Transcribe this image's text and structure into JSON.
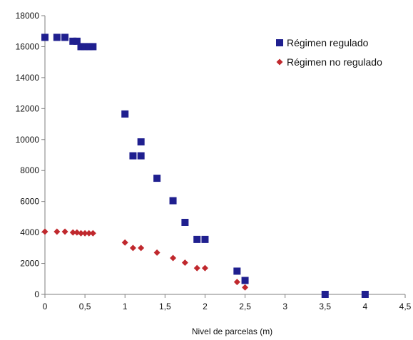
{
  "chart_data": {
    "type": "scatter",
    "title": "",
    "xlabel": "Nivel de parcelas (m)",
    "ylabel": "",
    "xlim": [
      0,
      4.5
    ],
    "ylim": [
      0,
      18000
    ],
    "x_ticks": [
      {
        "value": 0,
        "label": "0"
      },
      {
        "value": 0.5,
        "label": "0,5"
      },
      {
        "value": 1,
        "label": "1"
      },
      {
        "value": 1.5,
        "label": "1,5"
      },
      {
        "value": 2,
        "label": "2"
      },
      {
        "value": 2.5,
        "label": "2,5"
      },
      {
        "value": 3,
        "label": "3"
      },
      {
        "value": 3.5,
        "label": "3,5"
      },
      {
        "value": 4,
        "label": "4"
      },
      {
        "value": 4.5,
        "label": "4,5"
      }
    ],
    "y_ticks": [
      {
        "value": 0,
        "label": "0"
      },
      {
        "value": 2000,
        "label": "2000"
      },
      {
        "value": 4000,
        "label": "4000"
      },
      {
        "value": 6000,
        "label": "6000"
      },
      {
        "value": 8000,
        "label": "8000"
      },
      {
        "value": 10000,
        "label": "10000"
      },
      {
        "value": 12000,
        "label": "12000"
      },
      {
        "value": 14000,
        "label": "14000"
      },
      {
        "value": 16000,
        "label": "16000"
      },
      {
        "value": 18000,
        "label": "18000"
      }
    ],
    "grid": false,
    "legend": "top-right",
    "series": [
      {
        "name": "Régimen regulado",
        "marker": "square",
        "color": "#1f1f8f",
        "points": [
          {
            "x": 0,
            "y": 16600
          },
          {
            "x": 0.15,
            "y": 16600
          },
          {
            "x": 0.25,
            "y": 16600
          },
          {
            "x": 0.35,
            "y": 16350
          },
          {
            "x": 0.4,
            "y": 16350
          },
          {
            "x": 0.45,
            "y": 16000
          },
          {
            "x": 0.5,
            "y": 16000
          },
          {
            "x": 0.55,
            "y": 16000
          },
          {
            "x": 0.6,
            "y": 16000
          },
          {
            "x": 1,
            "y": 11650
          },
          {
            "x": 1.1,
            "y": 8950
          },
          {
            "x": 1.2,
            "y": 9850
          },
          {
            "x": 1.2,
            "y": 8950
          },
          {
            "x": 1.4,
            "y": 7500
          },
          {
            "x": 1.6,
            "y": 6050
          },
          {
            "x": 1.75,
            "y": 4650
          },
          {
            "x": 1.9,
            "y": 3550
          },
          {
            "x": 2,
            "y": 3550
          },
          {
            "x": 2.4,
            "y": 1500
          },
          {
            "x": 2.5,
            "y": 900
          },
          {
            "x": 3.5,
            "y": 0
          },
          {
            "x": 4,
            "y": 0
          }
        ]
      },
      {
        "name": "Régimen no regulado",
        "marker": "diamond",
        "color": "#c0282d",
        "points": [
          {
            "x": 0,
            "y": 4050
          },
          {
            "x": 0.15,
            "y": 4050
          },
          {
            "x": 0.25,
            "y": 4050
          },
          {
            "x": 0.35,
            "y": 4000
          },
          {
            "x": 0.4,
            "y": 4000
          },
          {
            "x": 0.45,
            "y": 3950
          },
          {
            "x": 0.5,
            "y": 3950
          },
          {
            "x": 0.55,
            "y": 3950
          },
          {
            "x": 0.6,
            "y": 3950
          },
          {
            "x": 1,
            "y": 3350
          },
          {
            "x": 1.1,
            "y": 3000
          },
          {
            "x": 1.2,
            "y": 3000
          },
          {
            "x": 1.4,
            "y": 2700
          },
          {
            "x": 1.6,
            "y": 2350
          },
          {
            "x": 1.75,
            "y": 2050
          },
          {
            "x": 1.9,
            "y": 1700
          },
          {
            "x": 2,
            "y": 1700
          },
          {
            "x": 2.4,
            "y": 800
          },
          {
            "x": 2.5,
            "y": 450
          }
        ]
      }
    ]
  }
}
